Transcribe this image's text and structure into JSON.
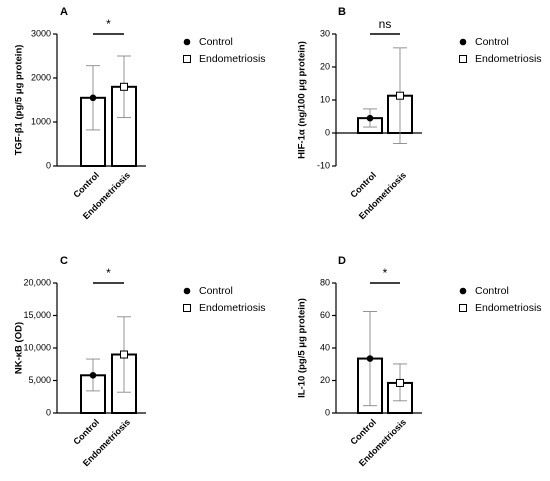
{
  "chart_data": [
    {
      "type": "bar",
      "panel": "A",
      "ylabel": "TGF-β1 (pg/5 μg protein)",
      "categories": [
        "Control",
        "Endometriosis"
      ],
      "values": [
        1550,
        1800
      ],
      "errors": [
        [
          820,
          2280
        ],
        [
          1100,
          2500
        ]
      ],
      "ylim": [
        0,
        3000
      ],
      "ticks": [
        0,
        1000,
        2000,
        3000
      ],
      "tick_labels": [
        "0",
        "1000",
        "2000",
        "3000"
      ],
      "significance": "*",
      "legend": [
        "Control",
        "Endometriosis"
      ],
      "legend_position": "right"
    },
    {
      "type": "bar",
      "panel": "B",
      "ylabel": "HIF-1α (ng/100 μg protein)",
      "categories": [
        "Control",
        "Endometriosis"
      ],
      "values": [
        4.5,
        11.3
      ],
      "errors": [
        [
          1.8,
          7.3
        ],
        [
          -3.2,
          25.8
        ]
      ],
      "ylim": [
        -10,
        30
      ],
      "ticks": [
        -10,
        0,
        10,
        20,
        30
      ],
      "tick_labels": [
        "-10",
        "0",
        "10",
        "20",
        "30"
      ],
      "significance": "ns",
      "legend": [
        "Control",
        "Endometriosis"
      ],
      "legend_position": "right"
    },
    {
      "type": "bar",
      "panel": "C",
      "ylabel": "NK-κB (OD)",
      "categories": [
        "Control",
        "Endometriosis"
      ],
      "values": [
        5800,
        9000
      ],
      "errors": [
        [
          3400,
          8300
        ],
        [
          3200,
          14800
        ]
      ],
      "ylim": [
        0,
        20000
      ],
      "ticks": [
        0,
        5000,
        10000,
        15000,
        20000
      ],
      "tick_labels": [
        "0",
        "5,000",
        "10,000",
        "15,000",
        "20,000"
      ],
      "significance": "*",
      "legend": [
        "Control",
        "Endometriosis"
      ],
      "legend_position": "right"
    },
    {
      "type": "bar",
      "panel": "D",
      "ylabel": "IL-10 (pg/5 μg protein)",
      "categories": [
        "Control",
        "Endometriosis"
      ],
      "values": [
        33.5,
        18.5
      ],
      "errors": [
        [
          4.5,
          62.5
        ],
        [
          7.5,
          30.2
        ]
      ],
      "ylim": [
        0,
        80
      ],
      "ticks": [
        0,
        20,
        40,
        60,
        80
      ],
      "tick_labels": [
        "0",
        "20",
        "40",
        "60",
        "80"
      ],
      "significance": "*",
      "legend": [
        "Control",
        "Endometriosis"
      ],
      "legend_position": "right"
    }
  ],
  "icons": {
    "control_marker": "filled-circle-icon",
    "endometriosis_marker": "open-square-icon"
  }
}
